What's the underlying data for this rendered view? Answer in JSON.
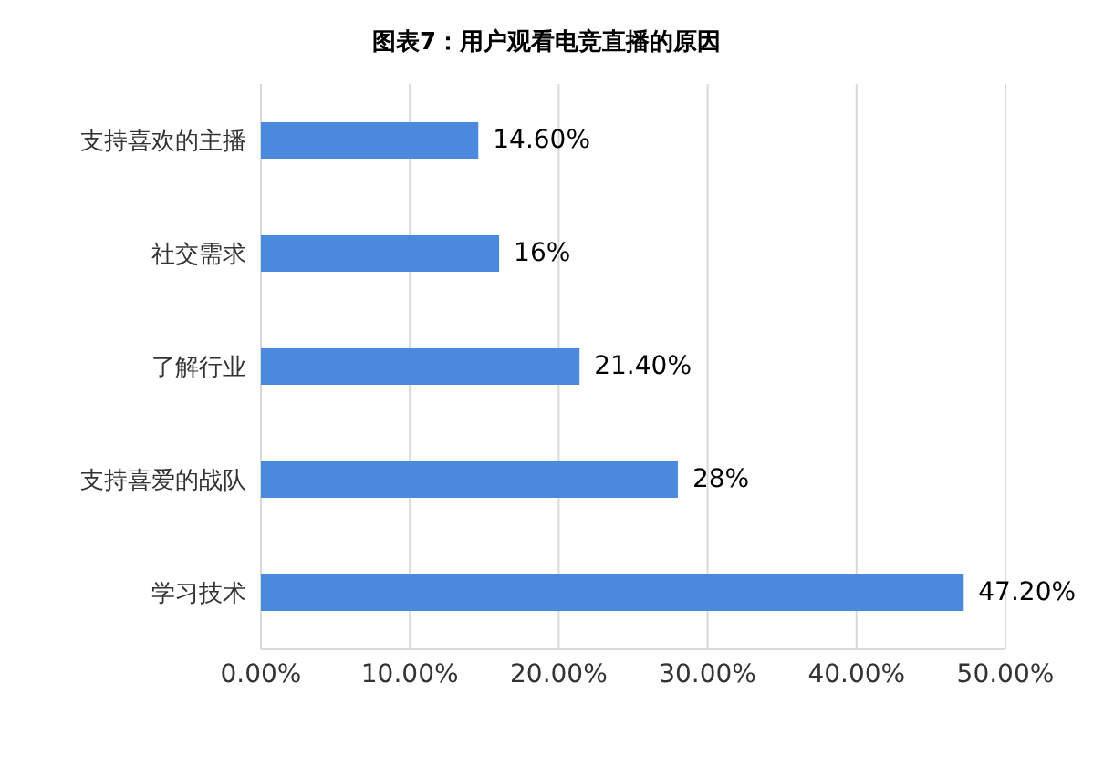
{
  "chart_data": {
    "type": "bar",
    "orientation": "horizontal",
    "title": "图表7：用户观看电竞直播的原因",
    "categories": [
      "支持喜欢的主播",
      "社交需求",
      "了解行业",
      "支持喜爱的战队",
      "学习技术"
    ],
    "values": [
      14.6,
      16,
      21.4,
      28,
      47.2
    ],
    "value_labels": [
      "14.60%",
      "16%",
      "21.40%",
      "28%",
      "47.20%"
    ],
    "color": "#4a89dc",
    "xlim": [
      0,
      50
    ],
    "xticks": [
      {
        "value": 0,
        "label": "0.00%"
      },
      {
        "value": 10,
        "label": "10.00%"
      },
      {
        "value": 20,
        "label": "20.00%"
      },
      {
        "value": 30,
        "label": "30.00%"
      },
      {
        "value": 40,
        "label": "40.00%"
      },
      {
        "value": 50,
        "label": "50.00%"
      }
    ],
    "grid": "x"
  }
}
